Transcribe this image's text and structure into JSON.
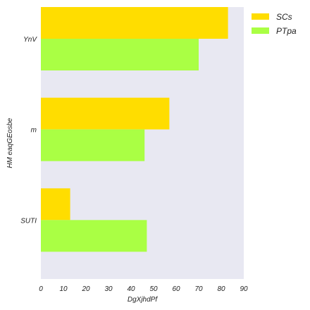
{
  "chart_data": {
    "type": "bar",
    "orientation": "horizontal",
    "categories": [
      "YnV",
      "m",
      "SUTI"
    ],
    "series": [
      {
        "name": "SCs",
        "values": [
          83,
          57,
          13
        ],
        "color": "#ffdd00"
      },
      {
        "name": "PTpa",
        "values": [
          70,
          46,
          47
        ],
        "color": "#aaff44"
      }
    ],
    "xlabel": "DgXjhdPf",
    "ylabel": "HM eaqGEosbe",
    "xlim": [
      0,
      90
    ],
    "xticks": [
      "0",
      "10",
      "20",
      "30",
      "40",
      "50",
      "60",
      "70",
      "80",
      "90"
    ],
    "grid": false,
    "background": "#e8e8f2",
    "legend": {
      "position": "right",
      "entries": [
        "SCs",
        "PTpa"
      ]
    }
  }
}
